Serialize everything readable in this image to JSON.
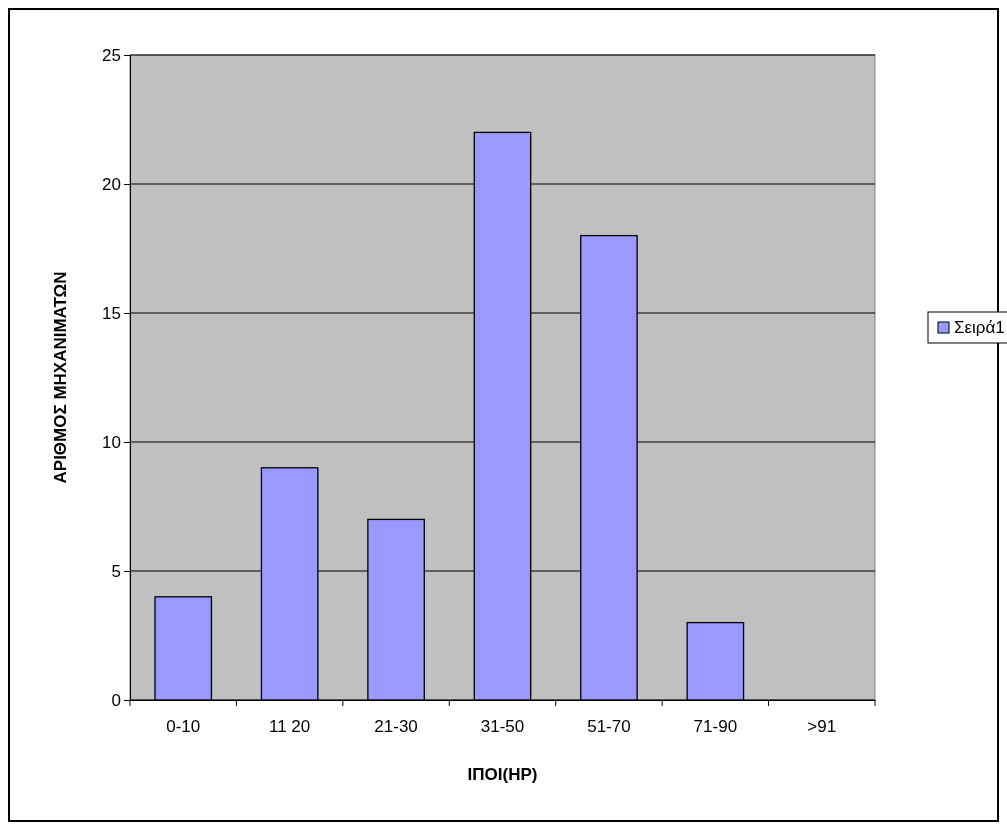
{
  "chart_data": {
    "type": "bar",
    "xlabel": "ΙΠΟΙ(HP)",
    "ylabel": "ΑΡΙΘΜΟΣ ΜΗΧΑΝΙΜΑΤΩΝ",
    "categories": [
      "0-10",
      "11 20",
      "21-30",
      "31-50",
      "51-70",
      "71-90",
      ">91"
    ],
    "series": [
      {
        "name": "Σειρά1",
        "color": "#9999ff",
        "values": [
          4,
          9,
          7,
          22,
          18,
          3,
          0
        ]
      }
    ],
    "ylim": [
      0,
      25
    ],
    "yticks": [
      0,
      5,
      10,
      15,
      20,
      25
    ],
    "grid": "y",
    "legend": "right"
  }
}
